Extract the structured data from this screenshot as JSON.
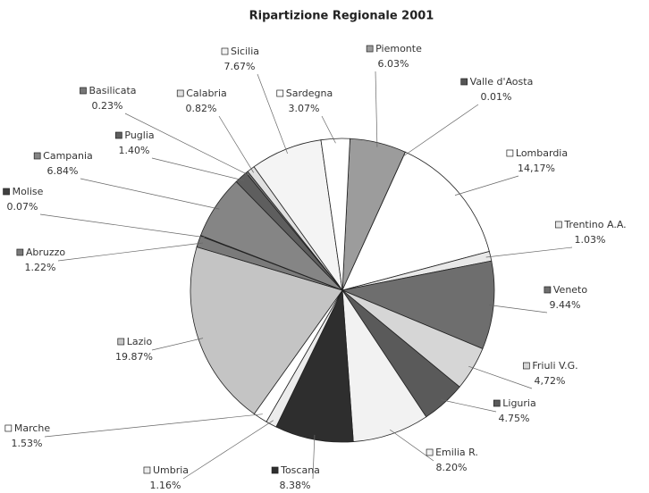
{
  "chart_data": {
    "type": "pie",
    "title": "Ripartizione Regionale 2001",
    "categories": [
      "Piemonte",
      "Valle d'Aosta",
      "Lombardia",
      "Trentino A.A.",
      "Veneto",
      "Friuli V.G.",
      "Liguria",
      "Emilia R.",
      "Toscana",
      "Umbria",
      "Marche",
      "Lazio",
      "Abruzzo",
      "Molise",
      "Campania",
      "Puglia",
      "Basilicata",
      "Calabria",
      "Sicilia",
      "Sardegna"
    ],
    "values": [
      6.03,
      0.01,
      14.17,
      1.03,
      9.44,
      4.72,
      4.75,
      8.2,
      8.38,
      1.16,
      1.53,
      19.87,
      1.22,
      0.07,
      6.84,
      1.4,
      0.23,
      0.82,
      7.67,
      3.07
    ],
    "value_labels": [
      "6.03%",
      "0.01%",
      "14,17%",
      "1.03%",
      "9.44%",
      "4,72%",
      "4.75%",
      "8.20%",
      "8.38%",
      "1.16%",
      "1.53%",
      "19.87%",
      "1.22%",
      "0.07%",
      "6.84%",
      "1.40%",
      "0.23%",
      "0.82%",
      "7.67%",
      "3.07%"
    ],
    "colors": [
      "#9c9c9c",
      "#555555",
      "#ffffff",
      "#e8e8e8",
      "#6e6e6e",
      "#d6d6d6",
      "#5a5a5a",
      "#f2f2f2",
      "#2e2e2e",
      "#ececec",
      "#ffffff",
      "#c4c4c4",
      "#7a7a7a",
      "#404040",
      "#858585",
      "#5e5e5e",
      "#777777",
      "#e0e0e0",
      "#f4f4f4",
      "#ffffff"
    ]
  }
}
